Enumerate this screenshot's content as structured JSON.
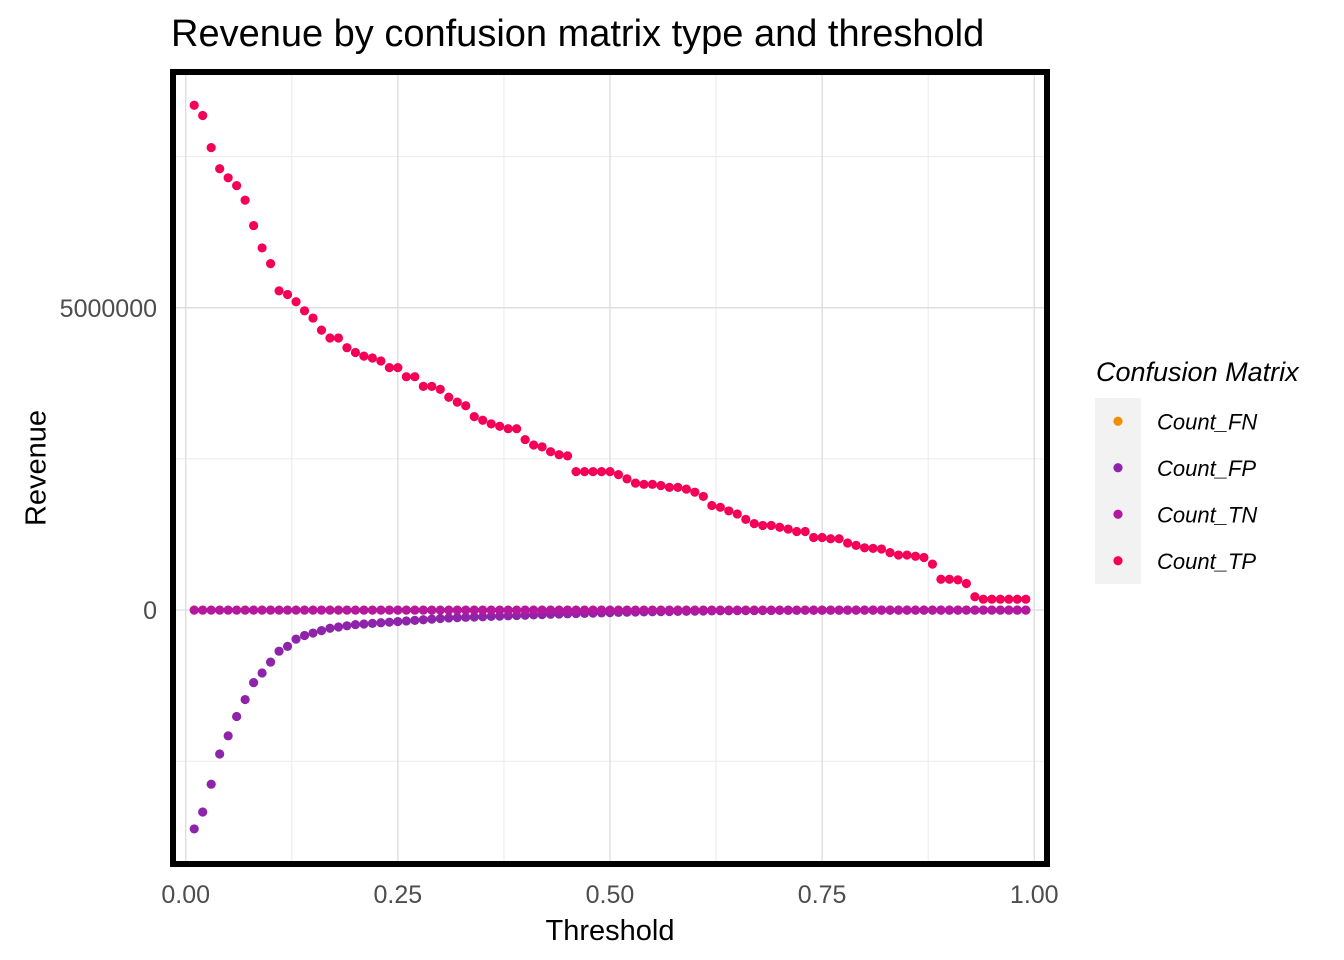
{
  "chart_data": {
    "type": "scatter",
    "title": "Revenue by confusion matrix type and threshold",
    "xlabel": "Threshold",
    "ylabel": "Revenue",
    "xlim": [
      -0.015,
      1.015
    ],
    "ylim": [
      -4200000,
      8900000
    ],
    "x_ticks": [
      0.0,
      0.25,
      0.5,
      0.75,
      1.0
    ],
    "x_tick_labels": [
      "0.00",
      "0.25",
      "0.50",
      "0.75",
      "1.00"
    ],
    "y_ticks": [
      0,
      5000000
    ],
    "y_tick_labels": [
      "0",
      "5000000"
    ],
    "grid": true,
    "legend_title": "Confusion Matrix",
    "legend_position": "right",
    "x": [
      0.01,
      0.02,
      0.03,
      0.04,
      0.05,
      0.06,
      0.07,
      0.08,
      0.09,
      0.1,
      0.11,
      0.12,
      0.13,
      0.14,
      0.15,
      0.16,
      0.17,
      0.18,
      0.19,
      0.2,
      0.21,
      0.22,
      0.23,
      0.24,
      0.25,
      0.26,
      0.27,
      0.28,
      0.29,
      0.3,
      0.31,
      0.32,
      0.33,
      0.34,
      0.35,
      0.36,
      0.37,
      0.38,
      0.39,
      0.4,
      0.41,
      0.42,
      0.43,
      0.44,
      0.45,
      0.46,
      0.47,
      0.48,
      0.49,
      0.5,
      0.51,
      0.52,
      0.53,
      0.54,
      0.55,
      0.56,
      0.57,
      0.58,
      0.59,
      0.6,
      0.61,
      0.62,
      0.63,
      0.64,
      0.65,
      0.66,
      0.67,
      0.68,
      0.69,
      0.7,
      0.71,
      0.72,
      0.73,
      0.74,
      0.75,
      0.76,
      0.77,
      0.78,
      0.79,
      0.8,
      0.81,
      0.82,
      0.83,
      0.84,
      0.85,
      0.86,
      0.87,
      0.88,
      0.89,
      0.9,
      0.91,
      0.92,
      0.93,
      0.94,
      0.95,
      0.96,
      0.97,
      0.98,
      0.99
    ],
    "series": [
      {
        "name": "Count_FN",
        "color": "#F28E00",
        "values": [
          0,
          0,
          0,
          0,
          0,
          0,
          0,
          0,
          0,
          0,
          0,
          0,
          0,
          0,
          0,
          0,
          0,
          0,
          0,
          0,
          0,
          0,
          0,
          0,
          0,
          0,
          0,
          0,
          0,
          0,
          0,
          0,
          0,
          0,
          0,
          0,
          0,
          0,
          0,
          0,
          0,
          0,
          0,
          0,
          0,
          0,
          0,
          0,
          0,
          0,
          0,
          0,
          0,
          0,
          0,
          0,
          0,
          0,
          0,
          0,
          0,
          0,
          0,
          0,
          0,
          0,
          0,
          0,
          0,
          0,
          0,
          0,
          0,
          0,
          0,
          0,
          0,
          0,
          0,
          0,
          0,
          0,
          0,
          0,
          0,
          0,
          0,
          0,
          0,
          0,
          0,
          0,
          0,
          0,
          0,
          0,
          0,
          0,
          0
        ]
      },
      {
        "name": "Count_FP",
        "color": "#8E24AA",
        "values": [
          -3620000,
          -3340000,
          -2880000,
          -2380000,
          -2080000,
          -1760000,
          -1480000,
          -1200000,
          -1040000,
          -860000,
          -680000,
          -600000,
          -480000,
          -420000,
          -380000,
          -340000,
          -300000,
          -280000,
          -260000,
          -240000,
          -230000,
          -220000,
          -210000,
          -200000,
          -190000,
          -180000,
          -170000,
          -160000,
          -150000,
          -140000,
          -130000,
          -125000,
          -120000,
          -115000,
          -110000,
          -105000,
          -100000,
          -95000,
          -90000,
          -85000,
          -80000,
          -75000,
          -70000,
          -66000,
          -62000,
          -58000,
          -54000,
          -50000,
          -46000,
          -42000,
          -38000,
          -35000,
          -32000,
          -30000,
          -28000,
          -26000,
          -24000,
          -22000,
          -20000,
          -18000,
          -16000,
          -14000,
          -12000,
          -11000,
          -10000,
          -9000,
          -8000,
          -7000,
          -6000,
          -5000,
          -4500,
          -4000,
          -3500,
          -3000,
          -2500,
          -2000,
          -1800,
          -1600,
          -1400,
          -1200,
          -1000,
          -900,
          -800,
          -700,
          -600,
          -500,
          -400,
          -300,
          -250,
          -200,
          -150,
          -100,
          -80,
          -60,
          -40,
          -20,
          -10,
          -5,
          0
        ]
      },
      {
        "name": "Count_TN",
        "color": "#B5179E",
        "values": [
          0,
          0,
          0,
          0,
          0,
          0,
          0,
          0,
          0,
          0,
          0,
          0,
          0,
          0,
          0,
          0,
          0,
          0,
          0,
          0,
          0,
          0,
          0,
          0,
          0,
          0,
          0,
          0,
          0,
          0,
          0,
          0,
          0,
          0,
          0,
          0,
          0,
          0,
          0,
          0,
          0,
          0,
          0,
          0,
          0,
          0,
          0,
          0,
          0,
          0,
          0,
          0,
          0,
          0,
          0,
          0,
          0,
          0,
          0,
          0,
          0,
          0,
          0,
          0,
          0,
          0,
          0,
          0,
          0,
          0,
          0,
          0,
          0,
          0,
          0,
          0,
          0,
          0,
          0,
          0,
          0,
          0,
          0,
          0,
          0,
          0,
          0,
          0,
          0,
          0,
          0,
          0,
          0,
          0,
          0,
          0,
          0,
          0,
          0
        ]
      },
      {
        "name": "Count_TP",
        "color": "#F50057",
        "values": [
          8350000,
          8180000,
          7650000,
          7300000,
          7150000,
          7020000,
          6780000,
          6360000,
          5990000,
          5730000,
          5280000,
          5220000,
          5100000,
          4950000,
          4830000,
          4630000,
          4500000,
          4500000,
          4340000,
          4260000,
          4200000,
          4170000,
          4120000,
          4010000,
          4010000,
          3860000,
          3860000,
          3700000,
          3700000,
          3650000,
          3520000,
          3440000,
          3380000,
          3200000,
          3140000,
          3080000,
          3040000,
          3000000,
          3000000,
          2820000,
          2730000,
          2700000,
          2620000,
          2570000,
          2550000,
          2290000,
          2290000,
          2290000,
          2290000,
          2290000,
          2240000,
          2170000,
          2100000,
          2080000,
          2080000,
          2060000,
          2030000,
          2030000,
          2000000,
          1950000,
          1880000,
          1730000,
          1700000,
          1640000,
          1590000,
          1500000,
          1430000,
          1400000,
          1400000,
          1370000,
          1340000,
          1300000,
          1300000,
          1200000,
          1200000,
          1180000,
          1180000,
          1110000,
          1070000,
          1030000,
          1020000,
          1010000,
          950000,
          910000,
          910000,
          890000,
          870000,
          760000,
          510000,
          510000,
          500000,
          440000,
          220000,
          180000,
          180000,
          180000,
          180000,
          180000,
          180000
        ]
      }
    ]
  }
}
